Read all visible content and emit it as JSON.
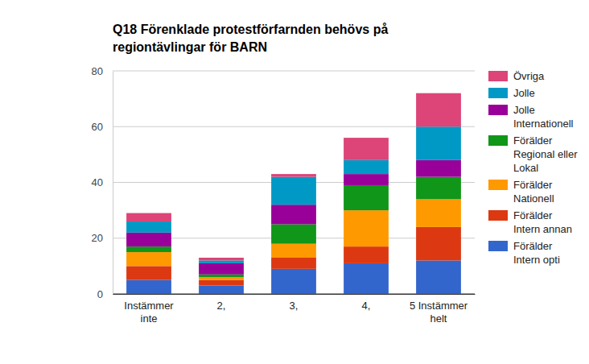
{
  "chart_data": {
    "type": "bar",
    "stacked": true,
    "title": "Q18 Förenklade protestförfarnden behövs på regiontävlingar för BARN",
    "categories": [
      "Instämmer inte",
      "2,",
      "3,",
      "4,",
      "5 Instämmer helt"
    ],
    "series": [
      {
        "name": "Förälder Intern opti",
        "color": "#3366cc",
        "values": [
          5,
          3,
          9,
          11,
          12
        ]
      },
      {
        "name": "Förälder Intern annan",
        "color": "#dc3912",
        "values": [
          5,
          2,
          4,
          6,
          12
        ]
      },
      {
        "name": "Förälder Nationell",
        "color": "#ff9900",
        "values": [
          5,
          1,
          5,
          13,
          10
        ]
      },
      {
        "name": "Förälder Regional eller Lokal",
        "color": "#109618",
        "values": [
          2,
          1,
          7,
          9,
          8
        ]
      },
      {
        "name": "Jolle Internationell",
        "color": "#990099",
        "values": [
          5,
          4,
          7,
          4,
          6
        ]
      },
      {
        "name": "Jolle",
        "color": "#0099c6",
        "values": [
          4,
          1,
          10,
          5,
          12
        ]
      },
      {
        "name": "Övriga",
        "color": "#dd4477",
        "values": [
          3,
          1,
          1,
          8,
          12
        ]
      }
    ],
    "ylim": [
      0,
      80
    ],
    "yticks": [
      0,
      20,
      40,
      60,
      80
    ],
    "grid": true,
    "legend": "right"
  }
}
